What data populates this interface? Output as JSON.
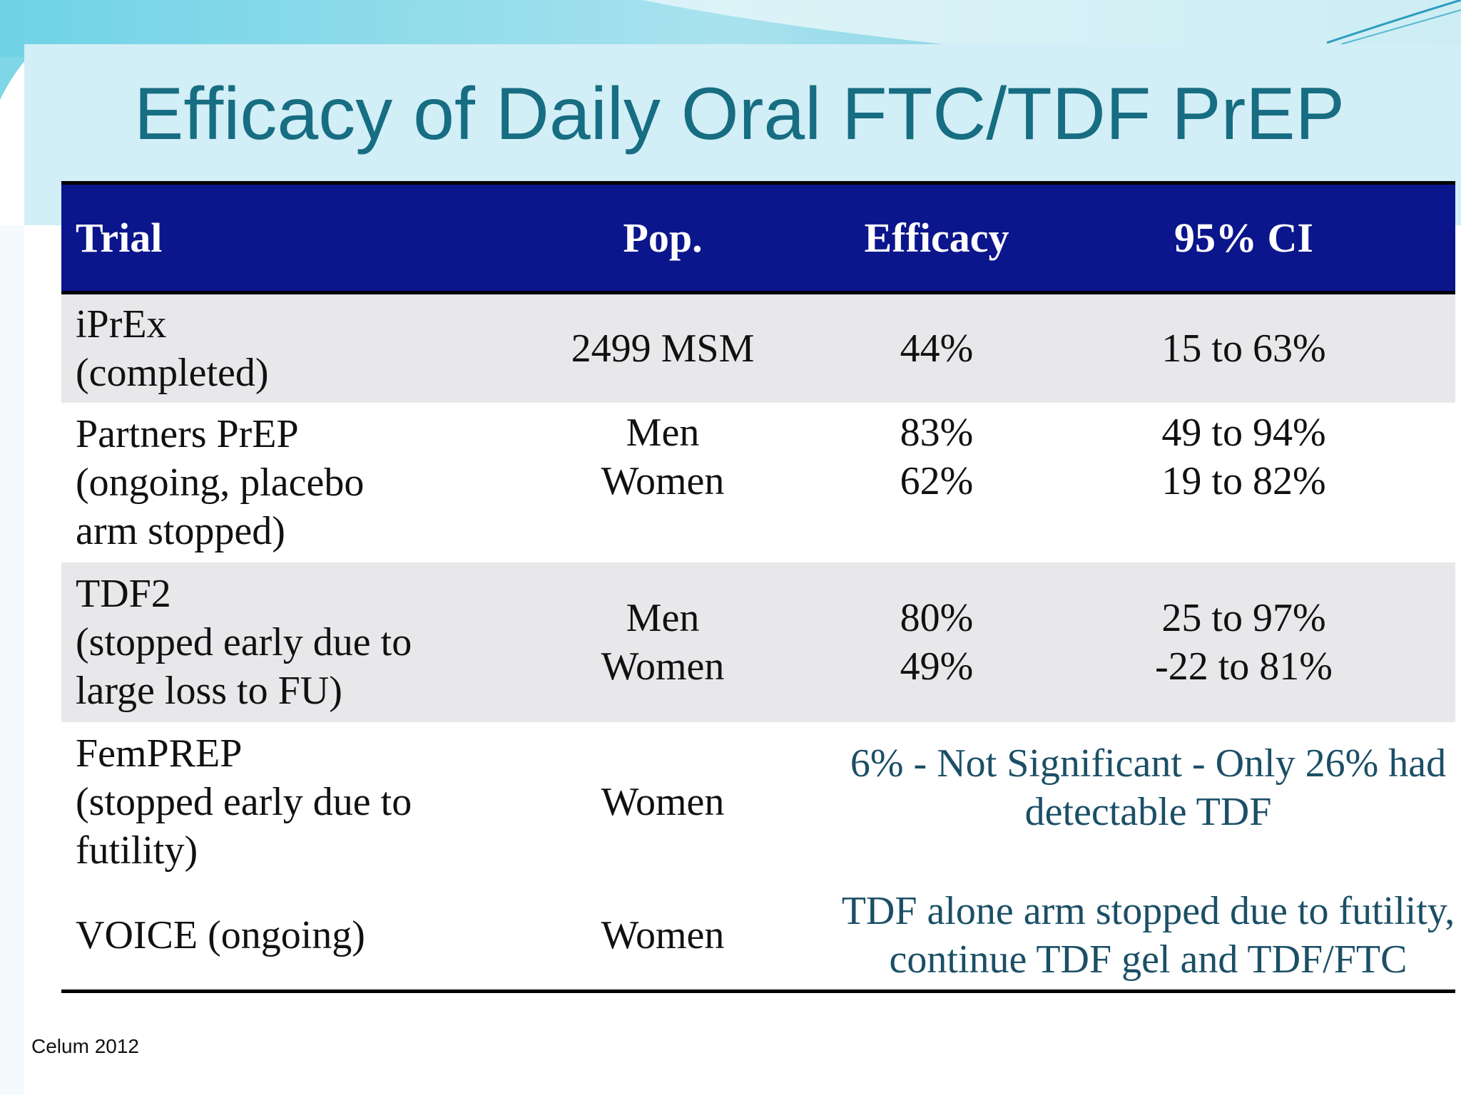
{
  "slide": {
    "title": "Efficacy of Daily Oral FTC/TDF PrEP",
    "footnote": "Celum 2012",
    "colors": {
      "title_text": "#176d82",
      "header_bg": "#0b158c",
      "row_grey": "#e8e7ea",
      "merged_text": "#1b4f66"
    }
  },
  "table": {
    "headers": [
      "Trial",
      "Pop.",
      "Efficacy",
      "95% CI"
    ],
    "rows": [
      {
        "trial": [
          "iPrEx",
          "(completed)"
        ],
        "pop": [
          "2499 MSM"
        ],
        "efficacy": [
          "44%"
        ],
        "ci": [
          "15 to 63%"
        ]
      },
      {
        "trial": [
          "Partners PrEP",
          "(ongoing, placebo",
          "arm stopped)"
        ],
        "pop": [
          "Men",
          "Women"
        ],
        "efficacy": [
          "83%",
          "62%"
        ],
        "ci": [
          "49 to 94%",
          "19 to 82%"
        ]
      },
      {
        "trial": [
          "TDF2",
          "(stopped early due to",
          "large loss to FU)"
        ],
        "pop": [
          "Men",
          "Women"
        ],
        "efficacy": [
          "80%",
          "49%"
        ],
        "ci": [
          "25 to 97%",
          "-22 to 81%"
        ]
      },
      {
        "trial": [
          "FemPREP",
          "(stopped early due to",
          "futility)"
        ],
        "pop": [
          "Women"
        ],
        "merged": [
          "6% - Not Significant - Only 26% had",
          "detectable TDF"
        ]
      },
      {
        "trial": [
          "VOICE (ongoing)"
        ],
        "pop": [
          "Women"
        ],
        "merged": [
          "TDF alone arm stopped due to futility,",
          "continue TDF gel and TDF/FTC"
        ]
      }
    ]
  }
}
